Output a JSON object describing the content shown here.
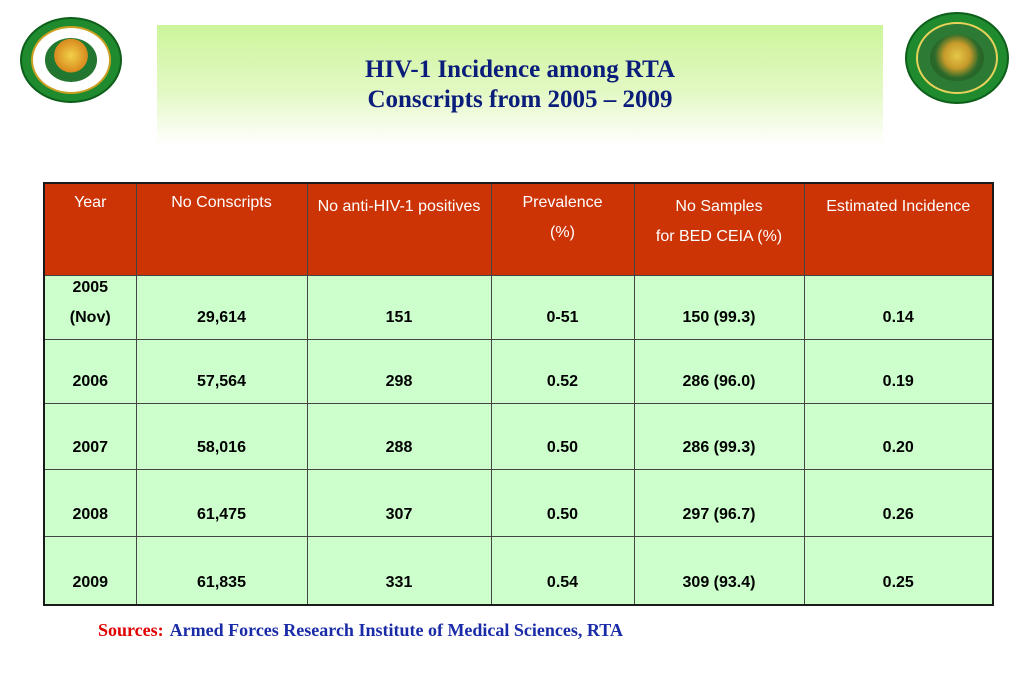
{
  "title": {
    "line1": "HIV-1 Incidence among RTA",
    "line2": "Conscripts from 2005 – 2009"
  },
  "logos": {
    "left": "armed-forces-research-institute-seal",
    "right": "ministry-of-public-health-seal"
  },
  "colors": {
    "header_bg": "#cc3305",
    "row_bg": "#ccffcc",
    "title_text": "#0b1d7a",
    "sources_label": "#e00000",
    "sources_value": "#1a2ba8"
  },
  "table": {
    "headers": [
      [
        "Year"
      ],
      [
        "No Conscripts"
      ],
      [
        "No anti-HIV-1 positives"
      ],
      [
        "Prevalence",
        "(%)"
      ],
      [
        "No Samples",
        "for BED CEIA (%)"
      ],
      [
        "Estimated Incidence"
      ]
    ],
    "rows": [
      {
        "year": "2005",
        "year_note": "(Nov)",
        "conscripts": "29,614",
        "positives": "151",
        "prevalence": "0-51",
        "samples": "150 (99.3)",
        "incidence": "0.14"
      },
      {
        "year": "2006",
        "conscripts": "57,564",
        "positives": "298",
        "prevalence": "0.52",
        "samples": "286 (96.0)",
        "incidence": "0.19"
      },
      {
        "year": "2007",
        "conscripts": "58,016",
        "positives": "288",
        "prevalence": "0.50",
        "samples": "286 (99.3)",
        "incidence": "0.20"
      },
      {
        "year": "2008",
        "conscripts": "61,475",
        "positives": "307",
        "prevalence": "0.50",
        "samples": "297 (96.7)",
        "incidence": "0.26"
      },
      {
        "year": "2009",
        "conscripts": "61,835",
        "positives": "331",
        "prevalence": "0.54",
        "samples": "309 (93.4)",
        "incidence": "0.25"
      }
    ]
  },
  "sources": {
    "label": "Sources:",
    "value": "Armed Forces Research Institute of Medical Sciences, RTA"
  }
}
